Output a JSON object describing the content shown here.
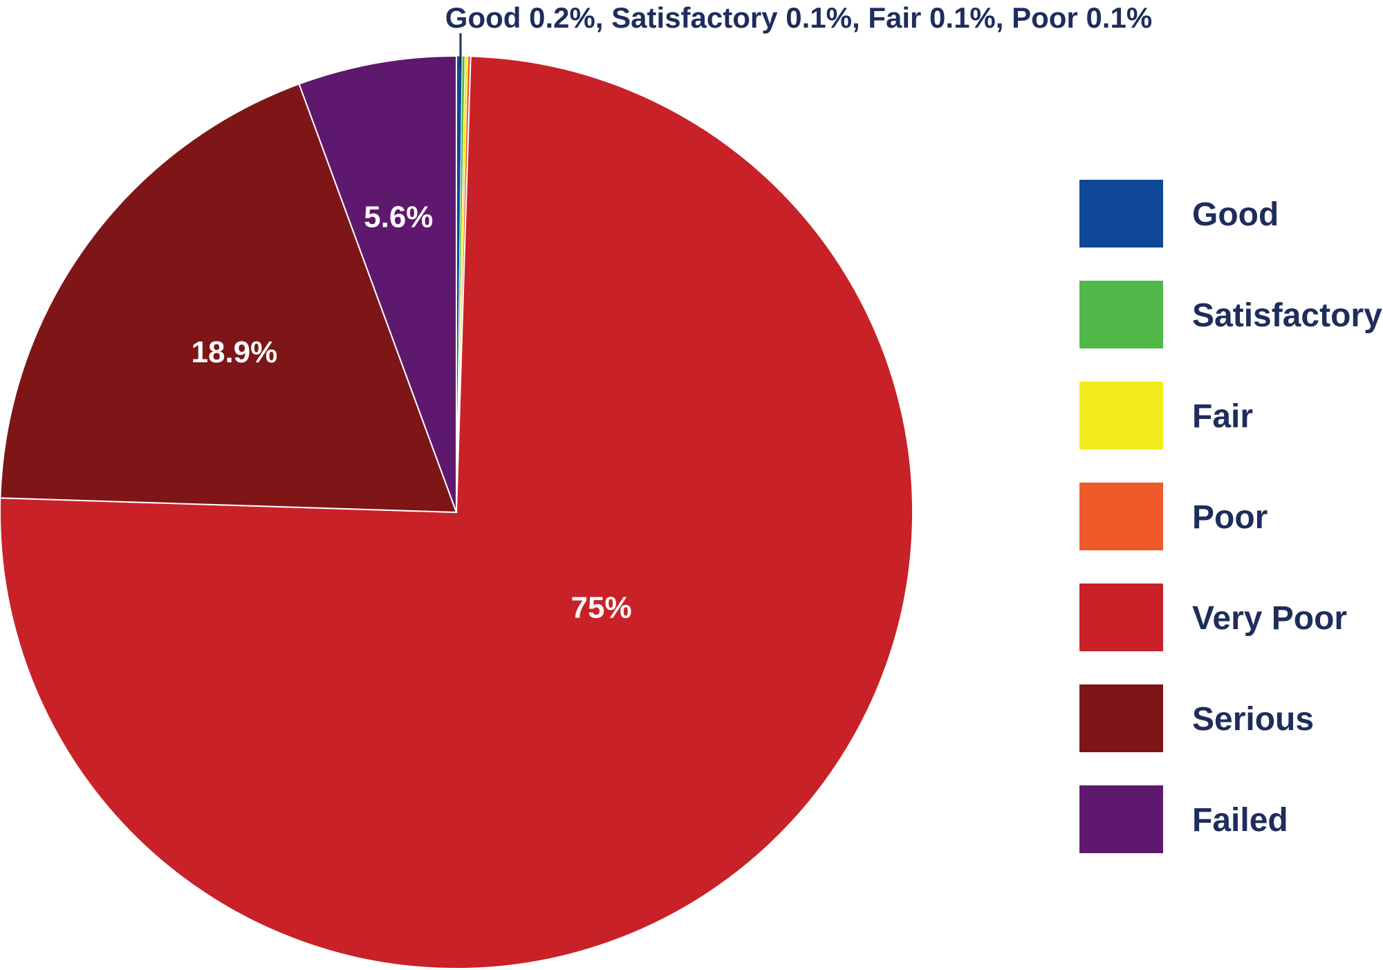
{
  "chart_data": {
    "type": "pie",
    "title": "",
    "small_slices_label": "Good 0.2%, Satisfactory 0.1%, Fair  0.1%, Poor  0.1%",
    "slices": [
      {
        "name": "Good",
        "value": 0.2,
        "color": "#0f4898",
        "label": ""
      },
      {
        "name": "Satisfactory",
        "value": 0.1,
        "color": "#4fb848",
        "label": ""
      },
      {
        "name": "Fair",
        "value": 0.1,
        "color": "#f2ea1a",
        "label": ""
      },
      {
        "name": "Poor",
        "value": 0.1,
        "color": "#f0592a",
        "label": ""
      },
      {
        "name": "Very Poor",
        "value": 75,
        "color": "#c92128",
        "label": "75%"
      },
      {
        "name": "Serious",
        "value": 18.9,
        "color": "#7e1517",
        "label": "18.9%"
      },
      {
        "name": "Failed",
        "value": 5.6,
        "color": "#5e186d",
        "label": "5.6%"
      }
    ],
    "legend": {
      "position": "right",
      "items": [
        "Good",
        "Satisfactory",
        "Fair",
        "Poor",
        "Very Poor",
        "Serious",
        "Failed"
      ]
    }
  }
}
